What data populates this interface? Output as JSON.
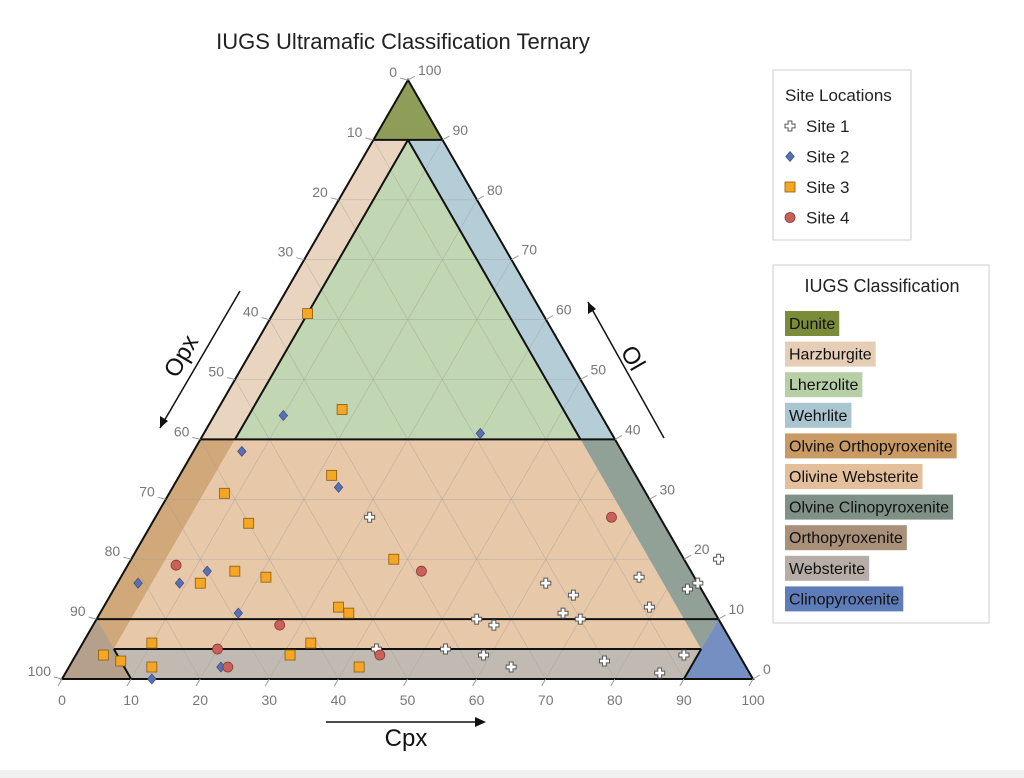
{
  "chart_data": {
    "type": "scatter",
    "subtype": "ternary",
    "title": "IUGS Ultramafic Classification Ternary",
    "axes": {
      "bottom": {
        "label": "Cpx",
        "ticks": [
          0,
          10,
          20,
          30,
          40,
          50,
          60,
          70,
          80,
          90,
          100
        ]
      },
      "left": {
        "label": "Opx",
        "ticks": [
          0,
          10,
          20,
          30,
          40,
          50,
          60,
          70,
          80,
          90,
          100
        ]
      },
      "right": {
        "label": "Ol",
        "ticks": [
          0,
          10,
          20,
          30,
          40,
          50,
          60,
          70,
          80,
          90,
          100
        ]
      }
    },
    "grid": true,
    "grid_step": 10,
    "legend_sites": {
      "title": "Site Locations",
      "position": "top-right",
      "entries": [
        {
          "name": "Site 1",
          "marker": "cross",
          "color": "#ffffff"
        },
        {
          "name": "Site 2",
          "marker": "diamond",
          "color": "#5b70b3"
        },
        {
          "name": "Site 3",
          "marker": "square",
          "color": "#f5a623"
        },
        {
          "name": "Site 4",
          "marker": "circle",
          "color": "#c9605a"
        }
      ]
    },
    "legend_classes": {
      "title": "IUGS Classification",
      "position": "right",
      "entries": [
        {
          "name": "Dunite",
          "color": "#7a8c3a"
        },
        {
          "name": "Harzburgite",
          "color": "#e6cdb5"
        },
        {
          "name": "Lherzolite",
          "color": "#b7cfa5"
        },
        {
          "name": "Wehrlite",
          "color": "#a9c5cf"
        },
        {
          "name": "Olvine Orthopyroxenite",
          "color": "#c99a63"
        },
        {
          "name": "Olivine Websterite",
          "color": "#e3bf9b"
        },
        {
          "name": "Olvine Clinopyroxenite",
          "color": "#7f9187"
        },
        {
          "name": "Orthopyroxenite",
          "color": "#a99079"
        },
        {
          "name": "Websterite",
          "color": "#b6aea6"
        },
        {
          "name": "Clinopyroxenite",
          "color": "#5e7cb8"
        }
      ]
    },
    "regions": [
      {
        "name": "Dunite",
        "color": "#7a8c3a",
        "vertices": [
          [
            100,
            0,
            0
          ],
          [
            90,
            10,
            0
          ],
          [
            90,
            0,
            10
          ]
        ]
      },
      {
        "name": "Harzburgite",
        "color": "#e6cdb5",
        "vertices": [
          [
            90,
            10,
            0
          ],
          [
            40,
            60,
            0
          ],
          [
            40,
            55,
            5
          ],
          [
            90,
            5,
            5
          ]
        ]
      },
      {
        "name": "Lherzolite",
        "color": "#b7cfa5",
        "vertices": [
          [
            90,
            5,
            5
          ],
          [
            40,
            55,
            5
          ],
          [
            40,
            5,
            55
          ]
        ]
      },
      {
        "name": "Wehrlite",
        "color": "#a9c5cf",
        "vertices": [
          [
            90,
            5,
            5
          ],
          [
            90,
            0,
            10
          ],
          [
            40,
            0,
            60
          ],
          [
            40,
            5,
            55
          ]
        ]
      },
      {
        "name": "Olvine Orthopyroxenite",
        "color": "#c99a63",
        "vertices": [
          [
            40,
            60,
            0
          ],
          [
            10,
            90,
            0
          ],
          [
            5,
            90,
            5
          ],
          [
            40,
            55,
            5
          ]
        ]
      },
      {
        "name": "Olivine Websterite",
        "color": "#e3bf9b",
        "vertices": [
          [
            40,
            55,
            5
          ],
          [
            5,
            90,
            5
          ],
          [
            5,
            5,
            90
          ],
          [
            40,
            5,
            55
          ]
        ]
      },
      {
        "name": "Olvine Clinopyroxenite",
        "color": "#7f9187",
        "vertices": [
          [
            40,
            5,
            55
          ],
          [
            5,
            5,
            90
          ],
          [
            10,
            0,
            90
          ],
          [
            40,
            0,
            60
          ]
        ]
      },
      {
        "name": "Orthopyroxenite",
        "color": "#a99079",
        "vertices": [
          [
            10,
            90,
            0
          ],
          [
            0,
            100,
            0
          ],
          [
            0,
            90,
            10
          ]
        ]
      },
      {
        "name": "Websterite",
        "color": "#b6aea6",
        "vertices": [
          [
            0,
            90,
            10
          ],
          [
            0,
            10,
            90
          ],
          [
            10,
            0,
            90
          ],
          [
            5,
            5,
            90
          ],
          [
            5,
            90,
            5
          ]
        ]
      },
      {
        "name": "Clinopyroxenite",
        "color": "#5e7cb8",
        "vertices": [
          [
            10,
            0,
            90
          ],
          [
            0,
            10,
            90
          ],
          [
            0,
            0,
            100
          ]
        ]
      }
    ],
    "series": [
      {
        "name": "Site 1",
        "points": [
          {
            "ol": 15,
            "cpx": 83
          },
          {
            "ol": 12,
            "cpx": 79
          },
          {
            "ol": 11,
            "cpx": 67
          },
          {
            "ol": 9,
            "cpx": 58
          },
          {
            "ol": 5,
            "cpx": 53
          },
          {
            "ol": 14,
            "cpx": 67
          },
          {
            "ol": 4,
            "cpx": 59
          },
          {
            "ol": 1,
            "cpx": 86
          },
          {
            "ol": 3,
            "cpx": 77
          },
          {
            "ol": 4,
            "cpx": 88
          },
          {
            "ol": 17,
            "cpx": 75
          },
          {
            "ol": 10,
            "cpx": 70
          },
          {
            "ol": 16,
            "cpx": 84
          },
          {
            "ol": 16,
            "cpx": 62
          },
          {
            "ol": 2,
            "cpx": 64
          },
          {
            "ol": 10,
            "cpx": 55
          },
          {
            "ol": 20,
            "cpx": 85
          },
          {
            "ol": 27,
            "cpx": 31
          },
          {
            "ol": 5,
            "cpx": 43
          }
        ]
      },
      {
        "name": "Site 2",
        "points": [
          {
            "ol": 38,
            "cpx": 7
          },
          {
            "ol": 41,
            "cpx": 40
          },
          {
            "ol": 32,
            "cpx": 24
          },
          {
            "ol": 18,
            "cpx": 12
          },
          {
            "ol": 16,
            "cpx": 9
          },
          {
            "ol": 16,
            "cpx": 3
          },
          {
            "ol": 11,
            "cpx": 20
          },
          {
            "ol": 2,
            "cpx": 22
          },
          {
            "ol": 0,
            "cpx": 13
          },
          {
            "ol": 44,
            "cpx": 10
          }
        ]
      },
      {
        "name": "Site 3",
        "points": [
          {
            "ol": 61,
            "cpx": 5
          },
          {
            "ol": 45,
            "cpx": 18
          },
          {
            "ol": 34,
            "cpx": 22
          },
          {
            "ol": 31,
            "cpx": 8
          },
          {
            "ol": 26,
            "cpx": 14
          },
          {
            "ol": 20,
            "cpx": 38
          },
          {
            "ol": 18,
            "cpx": 16
          },
          {
            "ol": 17,
            "cpx": 21
          },
          {
            "ol": 16,
            "cpx": 12
          },
          {
            "ol": 12,
            "cpx": 34
          },
          {
            "ol": 11,
            "cpx": 36
          },
          {
            "ol": 6,
            "cpx": 33
          },
          {
            "ol": 6,
            "cpx": 10
          },
          {
            "ol": 4,
            "cpx": 31
          },
          {
            "ol": 4,
            "cpx": 4
          },
          {
            "ol": 3,
            "cpx": 7
          },
          {
            "ol": 2,
            "cpx": 42
          },
          {
            "ol": 2,
            "cpx": 12
          }
        ]
      },
      {
        "name": "Site 4",
        "points": [
          {
            "ol": 27,
            "cpx": 66
          },
          {
            "ol": 18,
            "cpx": 43
          },
          {
            "ol": 19,
            "cpx": 7
          },
          {
            "ol": 9,
            "cpx": 27
          },
          {
            "ol": 5,
            "cpx": 20
          },
          {
            "ol": 4,
            "cpx": 44
          },
          {
            "ol": 2,
            "cpx": 23
          }
        ]
      }
    ]
  }
}
